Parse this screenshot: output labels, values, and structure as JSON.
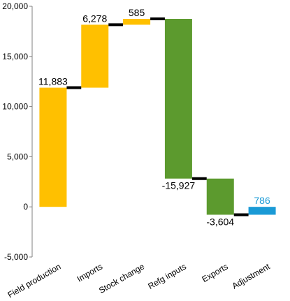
{
  "chart_data": {
    "type": "bar",
    "subtype": "waterfall",
    "title": "",
    "xlabel": "",
    "ylabel": "",
    "ylim": [
      -5000,
      20000
    ],
    "yticks": [
      -5000,
      0,
      5000,
      10000,
      15000,
      20000
    ],
    "ytick_labels": [
      "-5,000",
      "0",
      "5,000",
      "10,000",
      "15,000",
      "20,000"
    ],
    "grid": false,
    "legend": "none",
    "categories": [
      "Field production",
      "Imports",
      "Stock change",
      "Refg inputs",
      "Exports",
      "Adjustment"
    ],
    "values": [
      11883,
      6278,
      585,
      -15927,
      -3604,
      786
    ],
    "value_labels": [
      "11,883",
      "6,278",
      "585",
      "-15,927",
      "-3,604",
      "786"
    ],
    "cumulative_after": [
      11883,
      18161,
      18746,
      2819,
      -785,
      1
    ],
    "bar_colors": [
      "#FFC000",
      "#FFC000",
      "#FFC000",
      "#5C9A2E",
      "#5C9A2E",
      "#1A9AD6"
    ],
    "label_colors": [
      "#000000",
      "#000000",
      "#000000",
      "#000000",
      "#000000",
      "#1A9AD6"
    ],
    "connector_color": "#000000"
  }
}
